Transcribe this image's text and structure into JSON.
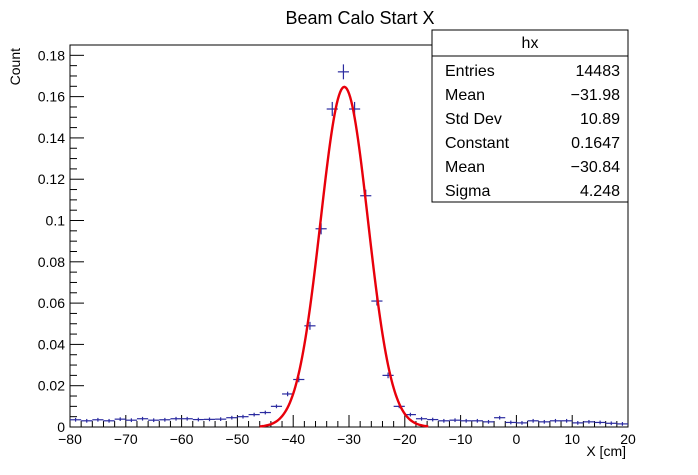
{
  "chart_data": {
    "type": "scatter",
    "title": "Beam Calo Start X",
    "xlabel": "X [cm]",
    "ylabel": "Count",
    "xlim": [
      -80,
      20
    ],
    "ylim": [
      0,
      0.185
    ],
    "x_ticks": [
      -80,
      -70,
      -60,
      -50,
      -40,
      -30,
      -20,
      -10,
      0,
      10,
      20
    ],
    "x_tick_labels": [
      "−80",
      "−70",
      "−60",
      "−50",
      "−40",
      "−30",
      "−20",
      "−10",
      "0",
      "10",
      "20"
    ],
    "y_ticks": [
      0,
      0.02,
      0.04,
      0.06,
      0.08,
      0.1,
      0.12,
      0.14,
      0.16,
      0.18
    ],
    "y_tick_labels": [
      "0",
      "0.02",
      "0.04",
      "0.06",
      "0.08",
      "0.1",
      "0.12",
      "0.14",
      "0.16",
      "0.18"
    ],
    "grid": false,
    "histogram": {
      "bin_width": 2,
      "x": [
        -79,
        -77,
        -75,
        -73,
        -71,
        -69,
        -67,
        -65,
        -63,
        -61,
        -59,
        -57,
        -55,
        -53,
        -51,
        -49,
        -47,
        -45,
        -43,
        -41,
        -39,
        -37,
        -35,
        -33,
        -31,
        -29,
        -27,
        -25,
        -23,
        -21,
        -19,
        -17,
        -15,
        -13,
        -11,
        -9,
        -7,
        -5,
        -3,
        -1,
        1,
        3,
        5,
        7,
        9,
        11,
        13,
        15,
        17,
        19
      ],
      "y": [
        0.0035,
        0.003,
        0.0035,
        0.003,
        0.0038,
        0.0033,
        0.004,
        0.0033,
        0.0035,
        0.004,
        0.004,
        0.0036,
        0.0037,
        0.0038,
        0.0045,
        0.005,
        0.006,
        0.007,
        0.01,
        0.016,
        0.023,
        0.049,
        0.096,
        0.154,
        0.172,
        0.154,
        0.112,
        0.061,
        0.025,
        0.01,
        0.006,
        0.004,
        0.0036,
        0.003,
        0.0033,
        0.003,
        0.003,
        0.0025,
        0.0045,
        0.0022,
        0.002,
        0.003,
        0.0025,
        0.003,
        0.003,
        0.002,
        0.0025,
        0.0022,
        0.0018,
        0.0015
      ],
      "color": "#2b2ba0"
    },
    "fit": {
      "type": "gaussian",
      "constant": 0.1647,
      "mean": -30.84,
      "sigma": 4.248,
      "color": "#e8000b"
    }
  },
  "stats_box": {
    "title": "hx",
    "rows": [
      {
        "label": "Entries",
        "value": "14483"
      },
      {
        "label": "Mean",
        "value": "−31.98"
      },
      {
        "label": "Std Dev",
        "value": "10.89"
      },
      {
        "label": "Constant",
        "value": "0.1647"
      },
      {
        "label": "Mean",
        "value": "−30.84"
      },
      {
        "label": "Sigma",
        "value": "4.248"
      }
    ]
  }
}
